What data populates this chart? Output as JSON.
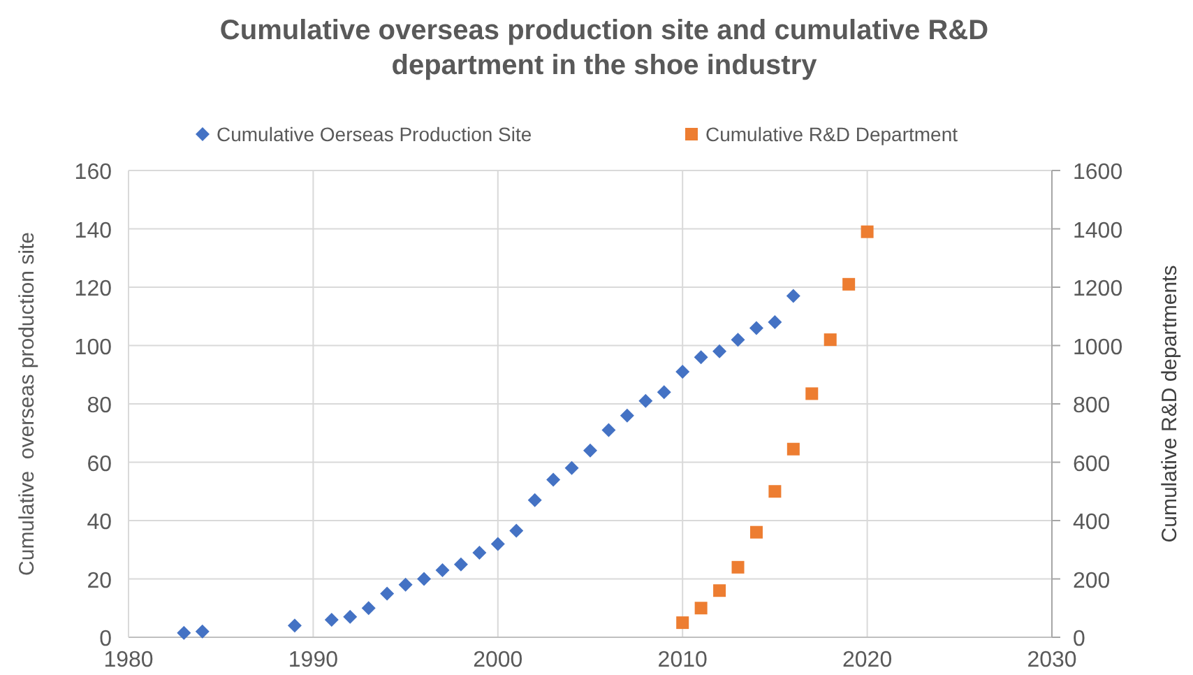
{
  "chart_data": {
    "type": "scatter",
    "title": "Cumulative overseas production site and cumulative R&D department in the shoe industry",
    "ylabel": "Cumulative  overseas production site",
    "y2label": "Cumulative R&D departments",
    "xlim": [
      1980,
      2030
    ],
    "xticks": [
      1980,
      1990,
      2000,
      2010,
      2020,
      2030
    ],
    "ylim": [
      0,
      160
    ],
    "yticks": [
      0,
      20,
      40,
      60,
      80,
      100,
      120,
      140,
      160
    ],
    "y2lim": [
      0,
      1600
    ],
    "y2ticks": [
      0,
      200,
      400,
      600,
      800,
      1000,
      1200,
      1400,
      1600
    ],
    "grid": true,
    "legend": "top",
    "series": [
      {
        "name": "Cumulative Oerseas Production Site",
        "color": "#4472c4",
        "marker": "diamond",
        "x": [
          1983,
          1984,
          1989,
          1991,
          1992,
          1993,
          1994,
          1995,
          1996,
          1997,
          1998,
          1999,
          2000,
          2001,
          2002,
          2003,
          2004,
          2005,
          2006,
          2007,
          2008,
          2009,
          2010,
          2011,
          2012,
          2013,
          2014,
          2015,
          2016
        ],
        "values": [
          1.5,
          2,
          4,
          6,
          7,
          10,
          15,
          18,
          20,
          23,
          25,
          29,
          32,
          36.5,
          47,
          54,
          58,
          64,
          71,
          76,
          81,
          84,
          91,
          96,
          98,
          102,
          106,
          108,
          117
        ]
      },
      {
        "name": "Cumulative R&D Department",
        "color": "#ed7d31",
        "marker": "square",
        "axis": "y2",
        "x": [
          2010,
          2011,
          2012,
          2013,
          2014,
          2015,
          2016,
          2017,
          2018,
          2019,
          2020
        ],
        "values": [
          50,
          100,
          160,
          240,
          360,
          500,
          645,
          835,
          1020,
          1210,
          1390
        ]
      }
    ]
  }
}
